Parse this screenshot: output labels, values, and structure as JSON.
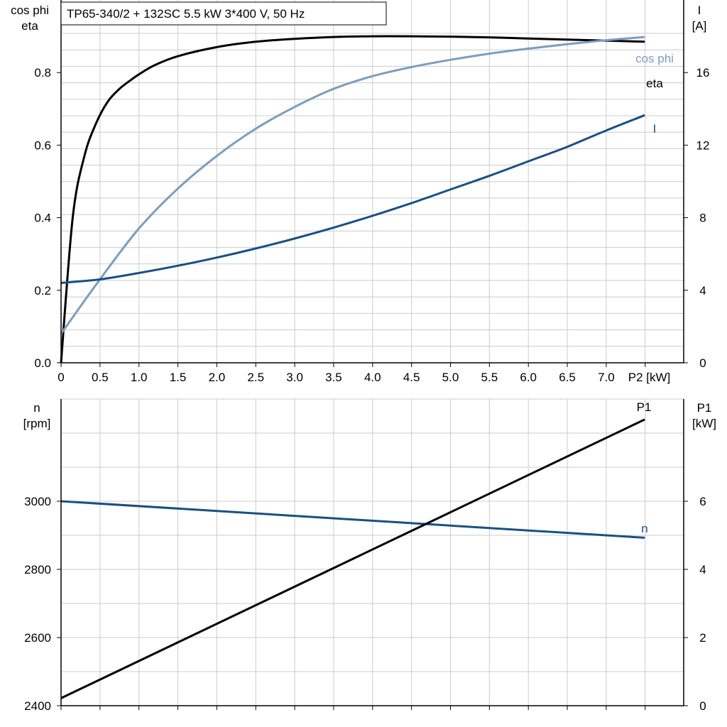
{
  "chart_data": [
    {
      "type": "line",
      "title": "TP65-340/2 + 132SC   5.5 kW   3*400 V, 50 Hz",
      "xlabel": "P2 [kW]",
      "xlim": [
        0,
        8
      ],
      "x_ticks": [
        "0",
        "0.5",
        "1.0",
        "1.5",
        "2.0",
        "2.5",
        "3.0",
        "3.5",
        "4.0",
        "4.5",
        "5.0",
        "5.5",
        "6.0",
        "6.5",
        "7.0",
        "P2 [kW]"
      ],
      "ylabel_left": [
        "cos phi",
        "eta"
      ],
      "ylim_left": [
        0,
        1.0
      ],
      "y_ticks_left": [
        "0.0",
        "0.2",
        "0.4",
        "0.6",
        "0.8"
      ],
      "ylabel_right": [
        "I",
        "[A]"
      ],
      "ylim_right": [
        0,
        20
      ],
      "y_ticks_right": [
        "0",
        "4",
        "8",
        "12",
        "16"
      ],
      "grid": true,
      "series": [
        {
          "name": "eta",
          "axis": "left",
          "color": "#000000",
          "x": [
            0,
            0.15,
            0.3,
            0.45,
            0.6,
            0.75,
            0.9,
            1.0,
            1.2,
            1.5,
            2.0,
            2.5,
            3.0,
            3.5,
            4.0,
            4.5,
            5.0,
            5.5,
            6.0,
            6.5,
            7.0,
            7.5
          ],
          "y": [
            0.0,
            0.4,
            0.57,
            0.66,
            0.72,
            0.755,
            0.78,
            0.795,
            0.82,
            0.845,
            0.87,
            0.885,
            0.893,
            0.898,
            0.9,
            0.9,
            0.899,
            0.897,
            0.894,
            0.891,
            0.888,
            0.885
          ]
        },
        {
          "name": "cos phi",
          "axis": "left",
          "color": "#7b9dbf",
          "x": [
            0,
            0.5,
            1.0,
            1.5,
            2.0,
            2.5,
            3.0,
            3.5,
            4.0,
            4.5,
            5.0,
            5.5,
            6.0,
            6.5,
            7.0,
            7.5
          ],
          "y": [
            0.08,
            0.23,
            0.37,
            0.48,
            0.57,
            0.645,
            0.705,
            0.755,
            0.79,
            0.815,
            0.835,
            0.852,
            0.866,
            0.878,
            0.889,
            0.898
          ]
        },
        {
          "name": "I",
          "axis": "right",
          "color": "#1a4f85",
          "x": [
            0,
            0.5,
            1.0,
            1.5,
            2.0,
            2.5,
            3.0,
            3.5,
            4.0,
            4.5,
            5.0,
            5.5,
            6.0,
            6.5,
            7.0,
            7.5
          ],
          "y": [
            4.4,
            4.6,
            4.95,
            5.35,
            5.8,
            6.3,
            6.85,
            7.45,
            8.1,
            8.8,
            9.55,
            10.3,
            11.1,
            11.9,
            12.8,
            13.65
          ]
        }
      ]
    },
    {
      "type": "line",
      "xlim": [
        0,
        8
      ],
      "ylabel_left": [
        "n",
        "[rpm]"
      ],
      "ylim_left": [
        2400,
        3300
      ],
      "y_ticks_left": [
        "2400",
        "2600",
        "2800",
        "3000"
      ],
      "ylabel_right": [
        "P1",
        "[kW]"
      ],
      "ylim_right": [
        0,
        9
      ],
      "y_ticks_right": [
        "0",
        "2",
        "4",
        "6"
      ],
      "grid": true,
      "series": [
        {
          "name": "n",
          "axis": "left",
          "color": "#1a4f85",
          "x": [
            0,
            7.5
          ],
          "y": [
            3000,
            2893
          ]
        },
        {
          "name": "P1",
          "axis": "right",
          "color": "#000000",
          "x": [
            0,
            7.5
          ],
          "y": [
            0.22,
            8.4
          ]
        }
      ]
    }
  ]
}
